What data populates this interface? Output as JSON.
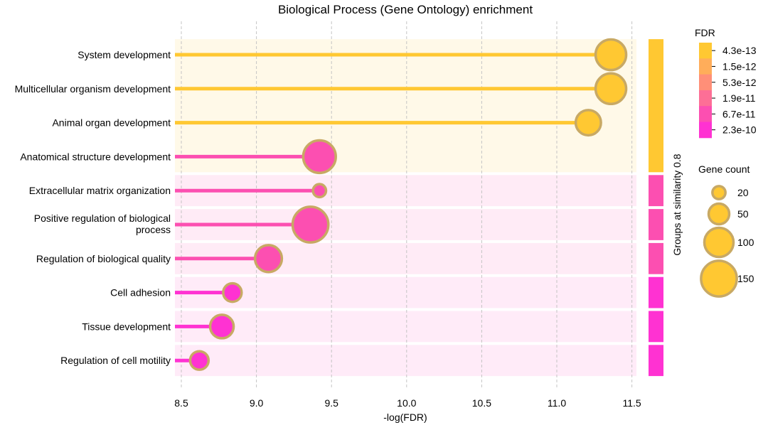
{
  "chart_data": {
    "type": "lollipop",
    "title": "Biological Process (Gene Ontology) enrichment",
    "xlabel": "-log(FDR)",
    "xlim": [
      8.45,
      11.55
    ],
    "xticks": [
      "8.5",
      "9.0",
      "9.5",
      "10.0",
      "10.5",
      "11.0",
      "11.5"
    ],
    "xtick_values": [
      8.5,
      9.0,
      9.5,
      10.0,
      10.5,
      11.0,
      11.5
    ],
    "grid": "vertical dashed",
    "group_axis_label": "Groups at similarity 0.8",
    "terms": [
      {
        "label": [
          "System development"
        ],
        "x": 11.36,
        "gene_count": 110,
        "color": "#ffc832",
        "group": 1
      },
      {
        "label": [
          "Multicellular organism development"
        ],
        "x": 11.36,
        "gene_count": 110,
        "color": "#ffc832",
        "group": 1
      },
      {
        "label": [
          "Animal organ development"
        ],
        "x": 11.21,
        "gene_count": 75,
        "color": "#ffc832",
        "group": 1
      },
      {
        "label": [
          "Anatomical structure development"
        ],
        "x": 9.42,
        "gene_count": 125,
        "color": "#fc4fb1",
        "group": 1
      },
      {
        "label": [
          "Extracellular matrix organization"
        ],
        "x": 9.42,
        "gene_count": 20,
        "color": "#fc4fb1",
        "group": 2
      },
      {
        "label": [
          "Positive regulation of biological",
          "process"
        ],
        "x": 9.36,
        "gene_count": 150,
        "color": "#fc4fb1",
        "group": 3
      },
      {
        "label": [
          "Regulation of biological quality"
        ],
        "x": 9.08,
        "gene_count": 85,
        "color": "#fc4fb1",
        "group": 4
      },
      {
        "label": [
          "Cell adhesion"
        ],
        "x": 8.84,
        "gene_count": 40,
        "color": "#ff32d2",
        "group": 5
      },
      {
        "label": [
          "Tissue development"
        ],
        "x": 8.77,
        "gene_count": 65,
        "color": "#ff32d2",
        "group": 6
      },
      {
        "label": [
          "Regulation of cell motility"
        ],
        "x": 8.62,
        "gene_count": 40,
        "color": "#ff32d2",
        "group": 7
      }
    ],
    "groups": [
      {
        "rows": [
          0,
          3
        ],
        "color": "#ffc832",
        "bg": "#fff9e8"
      },
      {
        "rows": [
          4,
          4
        ],
        "color": "#fc4fb1",
        "bg": "#ffebf6"
      },
      {
        "rows": [
          5,
          5
        ],
        "color": "#fc4fb1",
        "bg": "#ffebf6"
      },
      {
        "rows": [
          6,
          6
        ],
        "color": "#fc4fb1",
        "bg": "#ffebf6"
      },
      {
        "rows": [
          7,
          7
        ],
        "color": "#ff32d2",
        "bg": "#ffebf8"
      },
      {
        "rows": [
          8,
          8
        ],
        "color": "#ff32d2",
        "bg": "#ffebf8"
      },
      {
        "rows": [
          9,
          9
        ],
        "color": "#ff32d2",
        "bg": "#ffebf8"
      }
    ],
    "fdr_legend": {
      "title": "FDR",
      "levels": [
        {
          "label": "4.3e-13",
          "color": "#ffc832"
        },
        {
          "label": "1.5e-12",
          "color": "#ffad5a"
        },
        {
          "label": "5.3e-12",
          "color": "#ff8f78"
        },
        {
          "label": "1.9e-11",
          "color": "#fd6f96"
        },
        {
          "label": "6.7e-11",
          "color": "#fc4fb1"
        },
        {
          "label": "2.3e-10",
          "color": "#ff32d2"
        }
      ]
    },
    "size_legend": {
      "title": "Gene count",
      "entries": [
        {
          "label": "20",
          "value": 20
        },
        {
          "label": "50",
          "value": 50
        },
        {
          "label": "100",
          "value": 100
        },
        {
          "label": "150",
          "value": 150
        }
      ]
    }
  }
}
